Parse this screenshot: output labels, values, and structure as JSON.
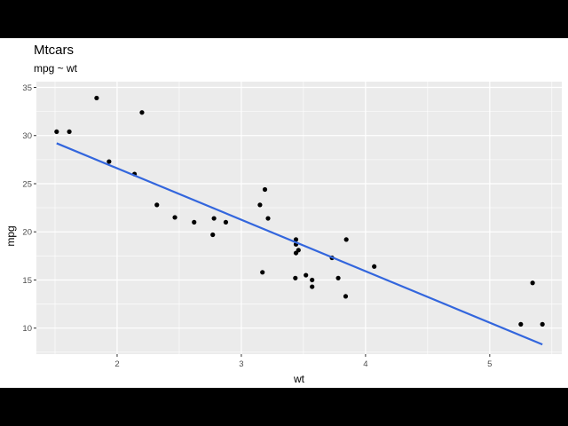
{
  "chart_data": {
    "type": "scatter",
    "title": "Mtcars",
    "subtitle": "mpg ~ wt",
    "xlabel": "wt",
    "ylabel": "mpg",
    "xlim": [
      1.35,
      5.58
    ],
    "ylim": [
      7.3,
      35.6
    ],
    "xticks": [
      2,
      3,
      4,
      5
    ],
    "yticks": [
      10,
      15,
      20,
      25,
      30,
      35
    ],
    "grid": true,
    "legend": "none",
    "colors": {
      "panel": "#ebebeb",
      "grid": "#ffffff",
      "point": "#000000",
      "line": "#3366dd"
    },
    "points": [
      {
        "x": 1.513,
        "y": 30.4
      },
      {
        "x": 1.615,
        "y": 30.4
      },
      {
        "x": 1.835,
        "y": 33.9
      },
      {
        "x": 1.935,
        "y": 27.3
      },
      {
        "x": 2.14,
        "y": 26.0
      },
      {
        "x": 2.2,
        "y": 32.4
      },
      {
        "x": 2.32,
        "y": 22.8
      },
      {
        "x": 2.465,
        "y": 21.5
      },
      {
        "x": 2.62,
        "y": 21.0
      },
      {
        "x": 2.77,
        "y": 19.7
      },
      {
        "x": 2.78,
        "y": 21.4
      },
      {
        "x": 2.875,
        "y": 21.0
      },
      {
        "x": 3.15,
        "y": 22.8
      },
      {
        "x": 3.17,
        "y": 15.8
      },
      {
        "x": 3.19,
        "y": 24.4
      },
      {
        "x": 3.215,
        "y": 21.4
      },
      {
        "x": 3.435,
        "y": 15.2
      },
      {
        "x": 3.44,
        "y": 18.7
      },
      {
        "x": 3.44,
        "y": 19.2
      },
      {
        "x": 3.44,
        "y": 17.8
      },
      {
        "x": 3.46,
        "y": 18.1
      },
      {
        "x": 3.52,
        "y": 15.5
      },
      {
        "x": 3.57,
        "y": 15.0
      },
      {
        "x": 3.57,
        "y": 14.3
      },
      {
        "x": 3.73,
        "y": 17.3
      },
      {
        "x": 3.78,
        "y": 15.2
      },
      {
        "x": 3.84,
        "y": 13.3
      },
      {
        "x": 3.845,
        "y": 19.2
      },
      {
        "x": 4.07,
        "y": 16.4
      },
      {
        "x": 5.25,
        "y": 10.4
      },
      {
        "x": 5.345,
        "y": 14.7
      },
      {
        "x": 5.424,
        "y": 10.4
      }
    ],
    "fit_line": {
      "x": [
        1.513,
        5.424
      ],
      "y": [
        29.2,
        8.3
      ]
    }
  }
}
